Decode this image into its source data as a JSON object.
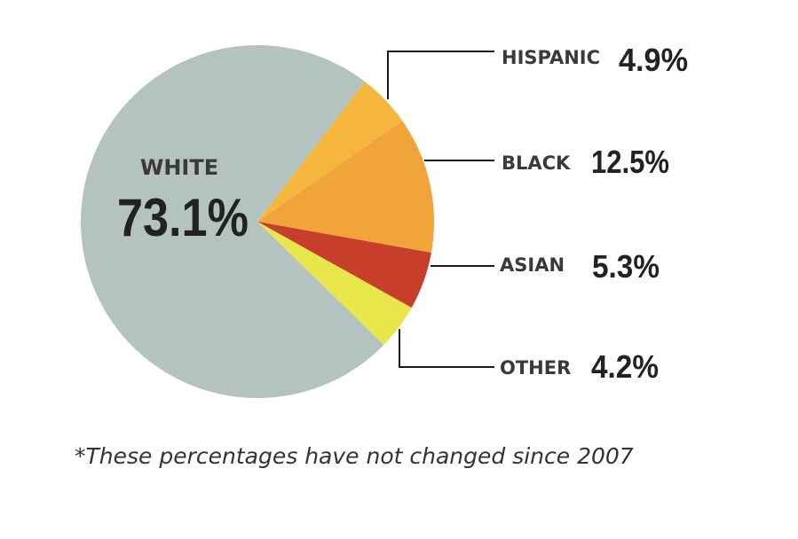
{
  "chart_data": {
    "type": "pie",
    "categories": [
      "WHITE",
      "HISPANIC",
      "BLACK",
      "ASIAN",
      "OTHER"
    ],
    "values": [
      73.1,
      4.9,
      12.5,
      5.3,
      4.2
    ],
    "value_labels": [
      "73.1%",
      "4.9%",
      "12.5%",
      "5.3%",
      "4.2%"
    ],
    "colors": [
      "#b4c3c0",
      "#f5b63d",
      "#f0a43a",
      "#c73f2b",
      "#e8e64a"
    ],
    "title": "",
    "footnote": "*These percentages have not changed since 2007"
  }
}
